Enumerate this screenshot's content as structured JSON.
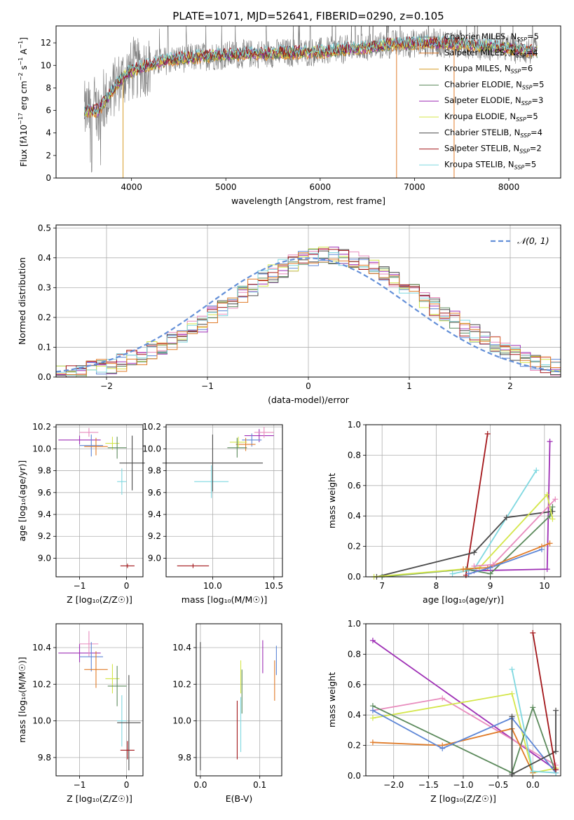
{
  "title": "PLATE=1071, MJD=52641, FIBERID=0290, z=0.105",
  "colors": {
    "Chabrier MILES": "#777777",
    "Salpeter MILES": "#e07e2e",
    "Kroupa MILES": "#d79b24",
    "Chabrier ELODIE": "#5c8a5c",
    "Salpeter ELODIE": "#9e2fb5",
    "Kroupa ELODIE": "#d4e64a",
    "Chabrier STELIB": "#4a4a4a",
    "Salpeter STELIB": "#a3161a",
    "Kroupa STELIB": "#7fd8e0",
    "pink": "#e88bbd",
    "blue": "#5d86d6",
    "orange": "#e07b28",
    "normal": "#6490d8"
  },
  "chart_data": [
    {
      "id": "spectrum",
      "type": "line",
      "xlabel": "wavelength [Angstrom, rest frame]",
      "ylabel_html": "Flux [f<tspan font-style='italic'>λ</tspan>10<tspan dy='-6' font-size='8'>−17</tspan><tspan dy='6'> erg cm</tspan><tspan dy='-6' font-size='8'>−2</tspan><tspan dy='6'> s</tspan><tspan dy='-6' font-size='8'>−1</tspan><tspan dy='6'> A</tspan><tspan dy='-6' font-size='8'>−1</tspan><tspan dy='6'>]</tspan>",
      "xlim": [
        3200,
        8550
      ],
      "ylim": [
        0,
        13.5
      ],
      "xticks": [
        4000,
        5000,
        6000,
        7000,
        8000
      ],
      "yticks": [
        0,
        2,
        4,
        6,
        8,
        10,
        12
      ],
      "legend": [
        {
          "label": "Chabrier MILES, N",
          "sub": "SSP",
          "val": "=5",
          "color": "#777777"
        },
        {
          "label": "Salpeter MILES, N",
          "sub": "SSP",
          "val": "=4",
          "color": "#e07e2e"
        },
        {
          "label": "Kroupa MILES, N",
          "sub": "SSP",
          "val": "=6",
          "color": "#d79b24"
        },
        {
          "label": "Chabrier ELODIE, N",
          "sub": "SSP",
          "val": "=5",
          "color": "#5c8a5c"
        },
        {
          "label": "Salpeter ELODIE, N",
          "sub": "SSP",
          "val": "=3",
          "color": "#9e2fb5"
        },
        {
          "label": "Kroupa ELODIE, N",
          "sub": "SSP",
          "val": "=5",
          "color": "#d4e64a"
        },
        {
          "label": "Chabrier STELIB, N",
          "sub": "SSP",
          "val": "=4",
          "color": "#4a4a4a"
        },
        {
          "label": "Salpeter STELIB, N",
          "sub": "SSP",
          "val": "=2",
          "color": "#a3161a"
        },
        {
          "label": "Kroupa STELIB, N",
          "sub": "SSP",
          "val": "=5",
          "color": "#7fd8e0"
        }
      ],
      "continuum": [
        [
          3500,
          5.9
        ],
        [
          3650,
          6.0
        ],
        [
          3850,
          8.4
        ],
        [
          3950,
          9.3
        ],
        [
          4100,
          9.8
        ],
        [
          4400,
          10.5
        ],
        [
          4800,
          10.8
        ],
        [
          5200,
          11.0
        ],
        [
          5600,
          11.1
        ],
        [
          6000,
          11.2
        ],
        [
          6400,
          11.5
        ],
        [
          6800,
          11.9
        ],
        [
          7200,
          12.0
        ],
        [
          7500,
          11.9
        ],
        [
          8000,
          11.5
        ],
        [
          8300,
          11.2
        ]
      ],
      "data_drops": [
        [
          3910,
          0
        ],
        [
          6810,
          0
        ],
        [
          7420,
          0
        ]
      ]
    },
    {
      "id": "residuals",
      "type": "histogram",
      "xlabel": "(data-model)/error",
      "ylabel": "Normed distribution",
      "xlim": [
        -2.5,
        2.5
      ],
      "ylim": [
        0,
        0.51
      ],
      "xticks": [
        -2,
        -1,
        0,
        1,
        2
      ],
      "xticklabels": [
        "−2",
        "−1",
        "0",
        "1",
        "2"
      ],
      "yticks": [
        0,
        0.1,
        0.2,
        0.3,
        0.4,
        0.5
      ],
      "yticklabels": [
        "0.0",
        "0.1",
        "0.2",
        "0.3",
        "0.4",
        "0.5"
      ],
      "legend": "𝒩(0, 1)",
      "bin_width": 0.1
    },
    {
      "id": "age_vs_Z",
      "type": "scatter",
      "xlabel": "Z [log₁₀(Z/Z☉)]",
      "ylabel": "age  [log₁₀(age/yr)]",
      "xlim": [
        -1.5,
        0.35
      ],
      "ylim": [
        8.83,
        10.22
      ],
      "xticks": [
        -1,
        0
      ],
      "xticklabels": [
        "−1",
        "0"
      ],
      "yticks": [
        9.0,
        9.2,
        9.4,
        9.6,
        9.8,
        10.0,
        10.2
      ],
      "yticklabels": [
        "9.0",
        "9.2",
        "9.4",
        "9.6",
        "9.8",
        "10.0",
        "10.2"
      ],
      "points": [
        {
          "x": -1.0,
          "xerr": 0.45,
          "y": 10.08,
          "yerr": 0.04,
          "color": "#9e2fb5"
        },
        {
          "x": -0.8,
          "xerr": 0.2,
          "y": 10.15,
          "yerr": 0.04,
          "color": "#e88bbd"
        },
        {
          "x": -0.75,
          "xerr": 0.25,
          "y": 10.03,
          "yerr": 0.1,
          "color": "#5d86d6"
        },
        {
          "x": -0.65,
          "xerr": 0.25,
          "y": 10.02,
          "yerr": 0.08,
          "color": "#e07b28"
        },
        {
          "x": -0.3,
          "xerr": 0.15,
          "y": 10.05,
          "yerr": 0.06,
          "color": "#d4e64a"
        },
        {
          "x": -0.2,
          "xerr": 0.2,
          "y": 10.01,
          "yerr": 0.1,
          "color": "#5c8a5c"
        },
        {
          "x": -0.1,
          "xerr": 0.1,
          "y": 9.7,
          "yerr": 0.12,
          "color": "#7fd8e0"
        },
        {
          "x": 0.12,
          "xerr": 0.27,
          "y": 9.87,
          "yerr": 0.25,
          "color": "#4a4a4a"
        },
        {
          "x": 0.02,
          "xerr": 0.15,
          "y": 8.93,
          "yerr": 0.02,
          "color": "#a3161a"
        }
      ]
    },
    {
      "id": "age_vs_mass",
      "type": "scatter",
      "xlabel": "mass [log₁₀(M/M☉)]",
      "xlim": [
        9.62,
        10.57
      ],
      "ylim": [
        8.83,
        10.22
      ],
      "xticks": [
        10.0,
        10.5
      ],
      "xticklabels": [
        "10.0",
        "10.5"
      ],
      "yticks": [
        9.0,
        9.2,
        9.4,
        9.6,
        9.8,
        10.0,
        10.2
      ],
      "yticklabels": [
        "9.0",
        "9.2",
        "9.4",
        "9.6",
        "9.8",
        "10.0",
        "10.2"
      ],
      "points": [
        {
          "x": 10.38,
          "xerr": 0.12,
          "y": 10.12,
          "yerr": 0.06,
          "color": "#9e2fb5"
        },
        {
          "x": 10.42,
          "xerr": 0.08,
          "y": 10.15,
          "yerr": 0.05,
          "color": "#e88bbd"
        },
        {
          "x": 10.32,
          "xerr": 0.08,
          "y": 10.08,
          "yerr": 0.06,
          "color": "#5d86d6"
        },
        {
          "x": 10.27,
          "xerr": 0.08,
          "y": 10.04,
          "yerr": 0.06,
          "color": "#e07b28"
        },
        {
          "x": 10.21,
          "xerr": 0.07,
          "y": 10.06,
          "yerr": 0.05,
          "color": "#d4e64a"
        },
        {
          "x": 10.2,
          "xerr": 0.08,
          "y": 10.01,
          "yerr": 0.09,
          "color": "#5c8a5c"
        },
        {
          "x": 9.99,
          "xerr": 0.14,
          "y": 9.7,
          "yerr": 0.15,
          "color": "#7fd8e0"
        },
        {
          "x": 10.0,
          "xerr": 0.41,
          "y": 9.87,
          "yerr": 0.26,
          "color": "#4a4a4a"
        },
        {
          "x": 9.84,
          "xerr": 0.13,
          "y": 8.93,
          "yerr": 0.02,
          "color": "#a3161a"
        }
      ]
    },
    {
      "id": "mass_weight_vs_age",
      "type": "line",
      "xlabel": "age  [log₁₀(age/yr)]",
      "ylabel": "mass weight",
      "xlim": [
        6.7,
        10.3
      ],
      "ylim": [
        0,
        1
      ],
      "xticks": [
        7,
        8,
        9,
        10
      ],
      "xticklabels": [
        "7",
        "8",
        "9",
        "10"
      ],
      "yticks": [
        0,
        0.2,
        0.4,
        0.6,
        0.8,
        1.0
      ],
      "yticklabels": [
        "0.0",
        "0.2",
        "0.4",
        "0.6",
        "0.8",
        "1.0"
      ],
      "series": [
        {
          "color": "#a3161a",
          "x": [
            8.55,
            8.95
          ],
          "y": [
            0.01,
            0.94
          ]
        },
        {
          "color": "#9e2fb5",
          "x": [
            8.7,
            10.05,
            10.1
          ],
          "y": [
            0.04,
            0.05,
            0.89
          ]
        },
        {
          "color": "#7fd8e0",
          "x": [
            8.3,
            8.7,
            9.85
          ],
          "y": [
            0.02,
            0.05,
            0.7
          ]
        },
        {
          "color": "#4a4a4a",
          "x": [
            6.9,
            8.7,
            9.3,
            10.15
          ],
          "y": [
            0.0,
            0.16,
            0.39,
            0.43
          ]
        },
        {
          "color": "#5c8a5c",
          "x": [
            7.0,
            8.55,
            9.0,
            10.1,
            10.15
          ],
          "y": [
            0.0,
            0.05,
            0.02,
            0.4,
            0.46
          ]
        },
        {
          "color": "#d4e64a",
          "x": [
            6.85,
            8.8,
            10.05,
            10.15
          ],
          "y": [
            0.0,
            0.06,
            0.54,
            0.38
          ]
        },
        {
          "color": "#e07b28",
          "x": [
            8.5,
            8.95,
            9.95,
            10.1
          ],
          "y": [
            0.05,
            0.06,
            0.2,
            0.22
          ]
        },
        {
          "color": "#5d86d6",
          "x": [
            8.6,
            9.0,
            9.95
          ],
          "y": [
            0.02,
            0.06,
            0.18
          ]
        },
        {
          "color": "#e88bbd",
          "x": [
            8.7,
            9.05,
            10.2
          ],
          "y": [
            0.07,
            0.08,
            0.51
          ]
        }
      ]
    },
    {
      "id": "mass_vs_Z",
      "type": "scatter",
      "xlabel": "Z [log₁₀(Z/Z☉)]",
      "ylabel": "mass [log₁₀(M/M☉)]",
      "xlim": [
        -1.5,
        0.35
      ],
      "ylim": [
        9.7,
        10.53
      ],
      "xticks": [
        -1,
        0
      ],
      "xticklabels": [
        "−1",
        "0"
      ],
      "yticks": [
        9.8,
        10.0,
        10.2,
        10.4
      ],
      "yticklabels": [
        "9.8",
        "10.0",
        "10.2",
        "10.4"
      ],
      "points": [
        {
          "x": -1.0,
          "xerr": 0.45,
          "y": 10.37,
          "yerr": 0.05,
          "color": "#9e2fb5"
        },
        {
          "x": -0.8,
          "xerr": 0.2,
          "y": 10.42,
          "yerr": 0.07,
          "color": "#e88bbd"
        },
        {
          "x": -0.75,
          "xerr": 0.25,
          "y": 10.35,
          "yerr": 0.08,
          "color": "#5d86d6"
        },
        {
          "x": -0.65,
          "xerr": 0.25,
          "y": 10.28,
          "yerr": 0.1,
          "color": "#e07b28"
        },
        {
          "x": -0.3,
          "xerr": 0.15,
          "y": 10.23,
          "yerr": 0.08,
          "color": "#d4e64a"
        },
        {
          "x": -0.2,
          "xerr": 0.2,
          "y": 10.19,
          "yerr": 0.11,
          "color": "#5c8a5c"
        },
        {
          "x": -0.1,
          "xerr": 0.1,
          "y": 10.0,
          "yerr": 0.14,
          "color": "#7fd8e0"
        },
        {
          "x": 0.05,
          "xerr": 0.25,
          "y": 9.99,
          "yerr": 0.26,
          "color": "#4a4a4a"
        },
        {
          "x": 0.02,
          "xerr": 0.15,
          "y": 9.84,
          "yerr": 0.05,
          "color": "#a3161a"
        }
      ]
    },
    {
      "id": "mass_vs_ebv",
      "type": "scatter",
      "xlabel": "E(B-V)",
      "xlim": [
        -0.007,
        0.137
      ],
      "ylim": [
        9.7,
        10.53
      ],
      "xticks": [
        0.0,
        0.1
      ],
      "xticklabels": [
        "0.0",
        "0.1"
      ],
      "yticks": [
        9.8,
        10.0,
        10.2,
        10.4
      ],
      "yticklabels": [
        "9.8",
        "10.0",
        "10.2",
        "10.4"
      ],
      "points": [
        {
          "x": 0.0,
          "xerr": 0,
          "y": 10.08,
          "yerr": 0.35,
          "color": "#4a4a4a"
        },
        {
          "x": 0.062,
          "xerr": 0,
          "y": 9.95,
          "yerr": 0.16,
          "color": "#a3161a"
        },
        {
          "x": 0.068,
          "xerr": 0,
          "y": 9.98,
          "yerr": 0.15,
          "color": "#7fd8e0"
        },
        {
          "x": 0.07,
          "xerr": 0,
          "y": 10.16,
          "yerr": 0.12,
          "color": "#5c8a5c"
        },
        {
          "x": 0.068,
          "xerr": 0,
          "y": 10.24,
          "yerr": 0.09,
          "color": "#d4e64a"
        },
        {
          "x": 0.105,
          "xerr": 0,
          "y": 10.35,
          "yerr": 0.09,
          "color": "#9e2fb5"
        },
        {
          "x": 0.125,
          "xerr": 0,
          "y": 10.22,
          "yerr": 0.11,
          "color": "#e07b28"
        },
        {
          "x": 0.128,
          "xerr": 0,
          "y": 10.33,
          "yerr": 0.08,
          "color": "#5d86d6"
        }
      ]
    },
    {
      "id": "mass_weight_vs_Z",
      "type": "line",
      "xlabel": "Z [log₁₀(Z/Z☉)]",
      "ylabel": "mass weight",
      "xlim": [
        -2.4,
        0.4
      ],
      "ylim": [
        0,
        1
      ],
      "xticks": [
        -2.0,
        -1.5,
        -1.0,
        -0.5,
        0.0
      ],
      "xticklabels": [
        "−2.0",
        "−1.5",
        "−1.0",
        "−0.5",
        "0.0"
      ],
      "yticks": [
        0,
        0.2,
        0.4,
        0.6,
        0.8,
        1.0
      ],
      "yticklabels": [
        "0.0",
        "0.2",
        "0.4",
        "0.6",
        "0.8",
        "1.0"
      ],
      "series": [
        {
          "color": "#9e2fb5",
          "x": [
            -2.3,
            0.33
          ],
          "y": [
            0.89,
            0.04
          ]
        },
        {
          "color": "#e88bbd",
          "x": [
            -2.3,
            -1.3,
            0.33
          ],
          "y": [
            0.43,
            0.51,
            0.07
          ]
        },
        {
          "color": "#d4e64a",
          "x": [
            -2.3,
            -0.3,
            0.0,
            0.33
          ],
          "y": [
            0.38,
            0.54,
            0.02,
            0.05
          ]
        },
        {
          "color": "#5c8a5c",
          "x": [
            -2.3,
            -0.3,
            0.0,
            0.33
          ],
          "y": [
            0.46,
            0.02,
            0.45,
            0.02
          ]
        },
        {
          "color": "#e07b28",
          "x": [
            -2.3,
            -1.3,
            -0.3,
            0.0
          ],
          "y": [
            0.22,
            0.2,
            0.31,
            0.02
          ]
        },
        {
          "color": "#5d86d6",
          "x": [
            -2.3,
            -1.3,
            -0.3,
            0.33
          ],
          "y": [
            0.43,
            0.18,
            0.38,
            0.02
          ]
        },
        {
          "color": "#7fd8e0",
          "x": [
            -0.3,
            0.0,
            0.33
          ],
          "y": [
            0.7,
            0.03,
            0.02
          ]
        },
        {
          "color": "#4a4a4a",
          "x": [
            -0.3,
            -0.3,
            0.33,
            0.33
          ],
          "y": [
            0.39,
            0.01,
            0.16,
            0.43
          ]
        },
        {
          "color": "#a3161a",
          "x": [
            0.0,
            0.33
          ],
          "y": [
            0.94,
            0.04
          ]
        }
      ]
    }
  ]
}
